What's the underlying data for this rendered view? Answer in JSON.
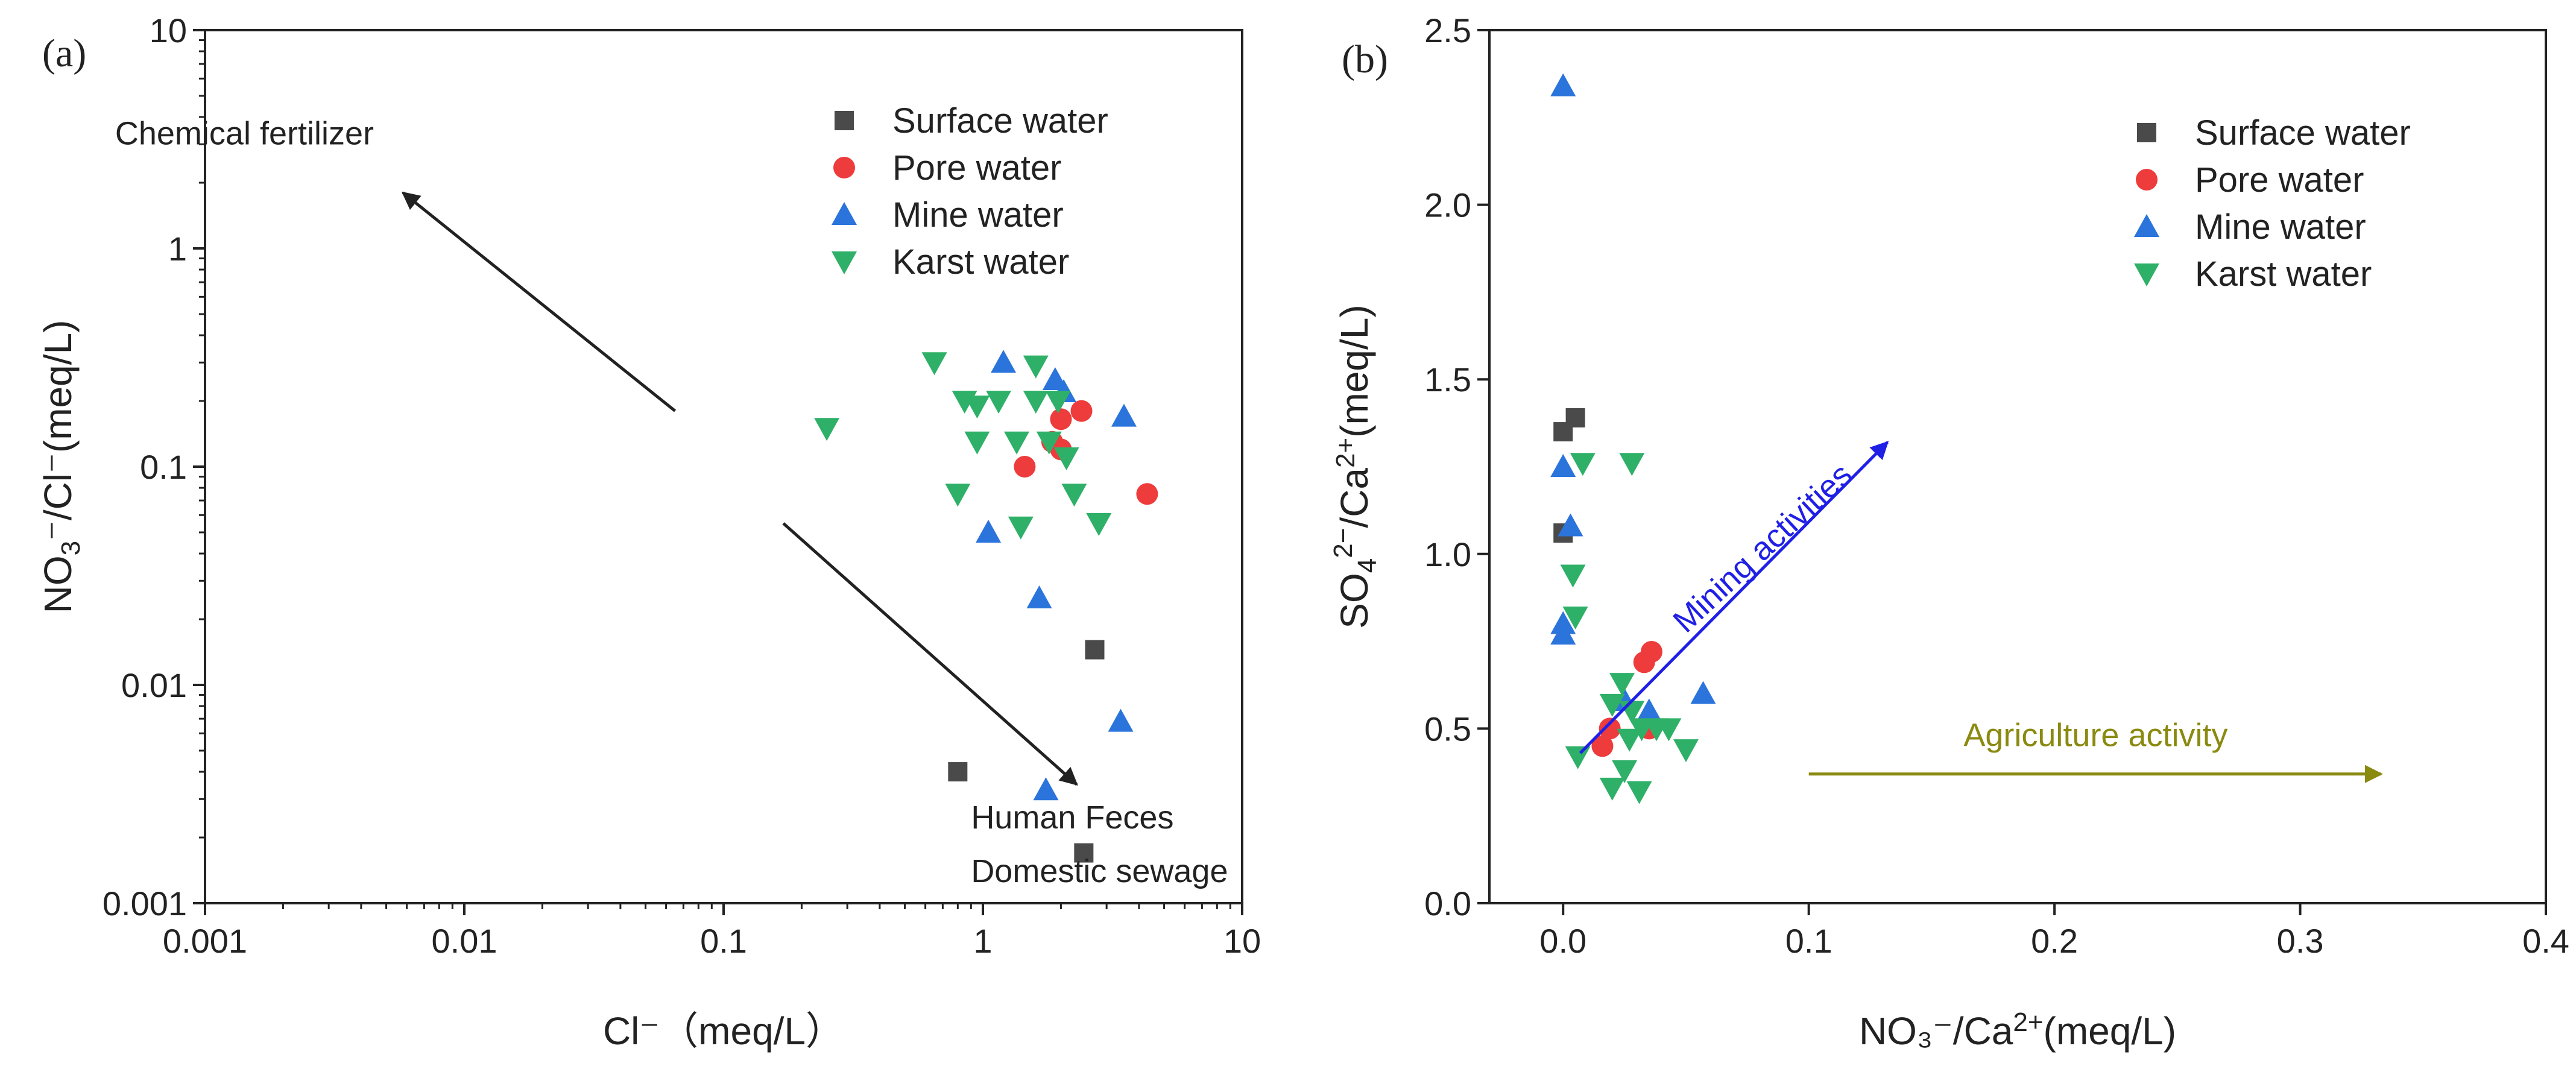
{
  "colors": {
    "surface": "#4a4a4a",
    "pore": "#ee3b3b",
    "mine": "#2a74dc",
    "karst": "#2fb068",
    "axis": "#222222",
    "mining_arrow": "#1f1fe6",
    "agri_arrow": "#8a8a10"
  },
  "chart_data": [
    {
      "type": "scatter",
      "panel_label": "(a)",
      "xscale": "log",
      "yscale": "log",
      "xlim": [
        0.001,
        10
      ],
      "ylim": [
        0.001,
        10
      ],
      "xticks": [
        "0.001",
        "0.01",
        "0.1",
        "1",
        "10"
      ],
      "yticks": [
        "0.001",
        "0.01",
        "0.1",
        "1",
        "10"
      ],
      "xlabel": "Cl⁻（meq/L）",
      "ylabel_parts": [
        "NO",
        "3",
        "⁻/Cl⁻(meq/L)"
      ],
      "legend": {
        "position": "top-right",
        "entries": [
          "Surface water",
          "Pore water",
          "Mine water",
          "Karst water"
        ]
      },
      "series": [
        {
          "name": "Surface water",
          "marker": "square",
          "points": [
            [
              0.8,
              0.004
            ],
            [
              2.7,
              0.0145
            ],
            [
              2.45,
              0.0017
            ]
          ]
        },
        {
          "name": "Pore water",
          "marker": "circle",
          "points": [
            [
              2.0,
              0.165
            ],
            [
              2.4,
              0.18
            ],
            [
              1.85,
              0.13
            ],
            [
              2.0,
              0.12
            ],
            [
              1.45,
              0.1
            ],
            [
              4.3,
              0.075
            ]
          ]
        },
        {
          "name": "Mine water",
          "marker": "triangle-up",
          "points": [
            [
              1.2,
              0.3
            ],
            [
              1.9,
              0.25
            ],
            [
              2.05,
              0.22
            ],
            [
              3.5,
              0.17
            ],
            [
              1.05,
              0.05
            ],
            [
              1.65,
              0.025
            ],
            [
              3.4,
              0.0068
            ],
            [
              1.75,
              0.0033
            ]
          ]
        },
        {
          "name": "Karst water",
          "marker": "triangle-down",
          "points": [
            [
              0.65,
              0.3
            ],
            [
              1.6,
              0.29
            ],
            [
              0.25,
              0.15
            ],
            [
              0.85,
              0.2
            ],
            [
              0.95,
              0.19
            ],
            [
              1.15,
              0.2
            ],
            [
              1.6,
              0.2
            ],
            [
              1.95,
              0.2
            ],
            [
              0.95,
              0.13
            ],
            [
              1.35,
              0.13
            ],
            [
              1.8,
              0.13
            ],
            [
              2.1,
              0.11
            ],
            [
              0.8,
              0.075
            ],
            [
              2.25,
              0.075
            ],
            [
              1.4,
              0.053
            ],
            [
              2.8,
              0.055
            ]
          ]
        }
      ],
      "annotations": [
        {
          "text": "Chemical fertilizer",
          "arrow_from": [
            0.065,
            0.18
          ],
          "arrow_to": [
            0.0058,
            1.8
          ],
          "text_at": [
            0.00045,
            3.0
          ]
        },
        {
          "text": "Human Feces",
          "arrow_from": [
            0.17,
            0.055
          ],
          "arrow_to": [
            2.3,
            0.0035
          ],
          "text_at": [
            0.9,
            0.0022
          ]
        },
        {
          "text": "Domestic sewage",
          "arrow_from": null,
          "arrow_to": null,
          "text_at": [
            0.9,
            0.00125
          ]
        }
      ]
    },
    {
      "type": "scatter",
      "panel_label": "(b)",
      "xlim": [
        -0.03,
        0.4
      ],
      "ylim": [
        0.0,
        2.5
      ],
      "xticks": [
        0.0,
        0.1,
        0.2,
        0.3,
        0.4
      ],
      "yticks": [
        0.0,
        0.5,
        1.0,
        1.5,
        2.0,
        2.5
      ],
      "xlabel_parts": [
        "NO₃⁻/Ca",
        "2+",
        "(meq/L)"
      ],
      "ylabel_parts": [
        "SO",
        "4",
        "2−",
        "/Ca",
        "2+",
        "(meq/L)"
      ],
      "legend": {
        "position": "top-right",
        "entries": [
          "Surface water",
          "Pore water",
          "Mine water",
          "Karst water"
        ]
      },
      "series": [
        {
          "name": "Surface water",
          "marker": "square",
          "points": [
            [
              0.005,
              1.39
            ],
            [
              0.0,
              1.35
            ],
            [
              0.0,
              1.06
            ]
          ]
        },
        {
          "name": "Pore water",
          "marker": "circle",
          "points": [
            [
              0.036,
              0.72
            ],
            [
              0.033,
              0.69
            ],
            [
              0.019,
              0.5
            ],
            [
              0.016,
              0.45
            ],
            [
              0.035,
              0.5
            ]
          ]
        },
        {
          "name": "Mine water",
          "marker": "triangle-up",
          "points": [
            [
              0.0,
              2.34
            ],
            [
              0.0,
              1.25
            ],
            [
              0.003,
              1.08
            ],
            [
              0.0,
              0.8
            ],
            [
              0.0,
              0.77
            ],
            [
              0.035,
              0.55
            ],
            [
              0.057,
              0.6
            ],
            [
              0.025,
              0.58
            ]
          ]
        },
        {
          "name": "Karst water",
          "marker": "triangle-down",
          "points": [
            [
              0.008,
              1.26
            ],
            [
              0.028,
              1.26
            ],
            [
              0.004,
              0.94
            ],
            [
              0.005,
              0.82
            ],
            [
              0.024,
              0.63
            ],
            [
              0.02,
              0.57
            ],
            [
              0.028,
              0.55
            ],
            [
              0.032,
              0.5
            ],
            [
              0.038,
              0.5
            ],
            [
              0.043,
              0.5
            ],
            [
              0.027,
              0.47
            ],
            [
              0.05,
              0.44
            ],
            [
              0.006,
              0.42
            ],
            [
              0.025,
              0.38
            ],
            [
              0.02,
              0.33
            ],
            [
              0.031,
              0.32
            ]
          ]
        }
      ],
      "annotations": [
        {
          "text": "Mining activities",
          "arrow_from": [
            0.007,
            0.43
          ],
          "arrow_to": [
            0.132,
            1.32
          ],
          "text_at": [
            0.05,
            0.77
          ],
          "rotate": -43,
          "color": "mining_arrow"
        },
        {
          "text": "Agriculture activity",
          "arrow_from": [
            0.1,
            0.37
          ],
          "arrow_to": [
            0.333,
            0.37
          ],
          "text_at": [
            0.163,
            0.45
          ],
          "rotate": 0,
          "color": "agri_arrow"
        }
      ]
    }
  ]
}
